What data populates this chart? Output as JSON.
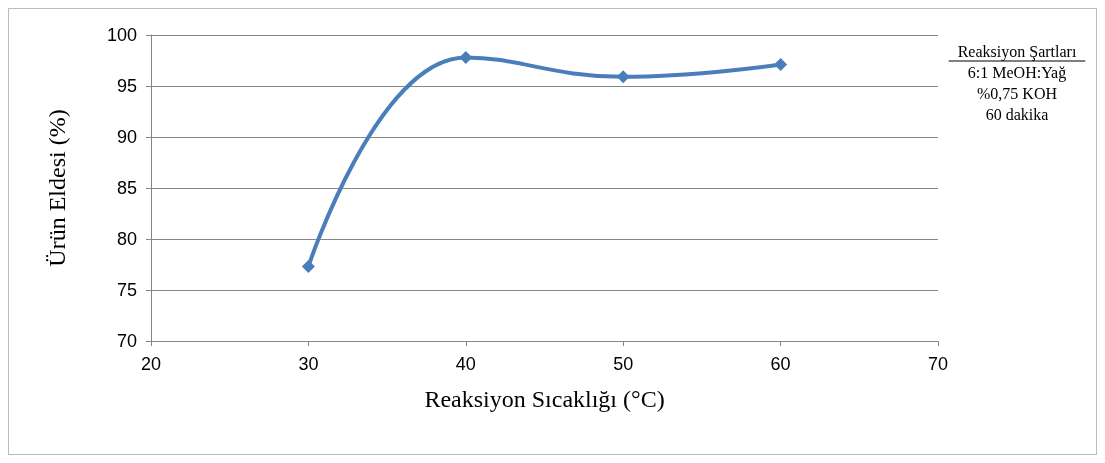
{
  "chart_data": {
    "type": "line",
    "xlabel": "Reaksiyon Sıcaklığı (°C)",
    "ylabel": "Ürün Eldesi (%)",
    "x": [
      30,
      40,
      50,
      60
    ],
    "series": [
      {
        "color": "#4a7ebb",
        "values": [
          77.3,
          97.8,
          95.9,
          97.1
        ]
      }
    ],
    "xlim": [
      20,
      70
    ],
    "xticks": [
      20,
      30,
      40,
      50,
      60,
      70
    ],
    "ylim": [
      70,
      100
    ],
    "yticks": [
      70,
      75,
      80,
      85,
      90,
      95,
      100
    ],
    "grid": "y",
    "marker": "diamond",
    "line_style": "solid",
    "annotations": [
      "Reaksiyon Şartları",
      "6:1 MeOH:Yağ",
      "%0,75 KOH",
      "60 dakika"
    ]
  }
}
